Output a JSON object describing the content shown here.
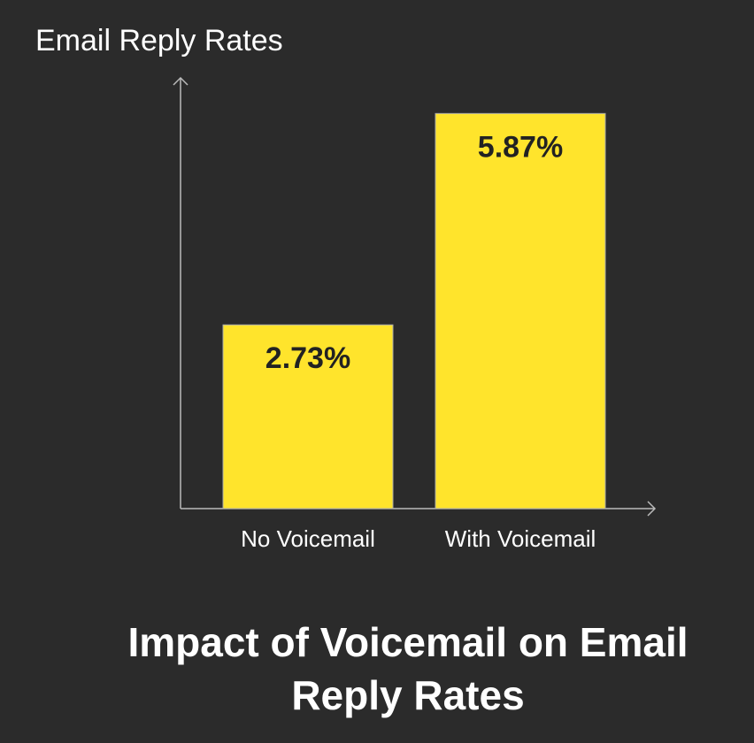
{
  "chart_data": {
    "type": "bar",
    "title": "Impact of Voicemail on Email Reply Rates",
    "y_label": "Email Reply Rates",
    "categories": [
      "No Voicemail",
      "With Voicemail"
    ],
    "values": [
      2.73,
      5.87
    ],
    "value_labels": [
      "2.73%",
      "5.87%"
    ],
    "color": "#ffe42c",
    "ylim": [
      0,
      6.4
    ]
  }
}
